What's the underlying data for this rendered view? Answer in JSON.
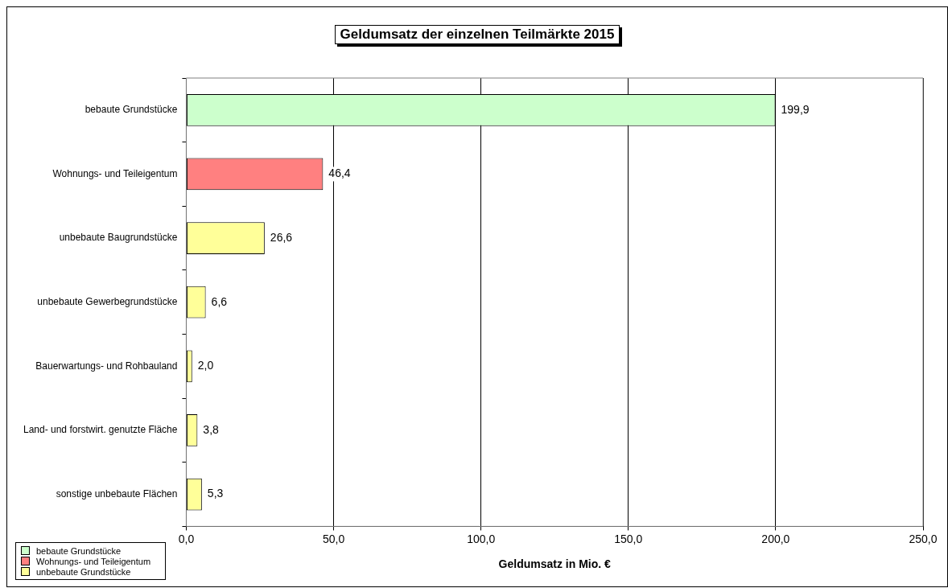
{
  "chart_data": {
    "type": "bar",
    "orientation": "horizontal",
    "title": "Geldumsatz der einzelnen Teilmärkte 2015",
    "xlabel": "Geldumsatz in Mio. €",
    "categories": [
      "bebaute Grundstücke",
      "Wohnungs- und Teileigentum",
      "unbebaute Baugrundstücke",
      "unbebaute Gewerbegrundstücke",
      "Bauerwartungs- und Rohbauland",
      "Land- und forstwirt. genutzte Fläche",
      "sonstige unbebaute Flächen"
    ],
    "series": [
      {
        "name": "bebaute Grundstücke",
        "color": "#ccffcc",
        "values": [
          199.9,
          null,
          null,
          null,
          null,
          null,
          null
        ],
        "value_labels": [
          "199,9",
          null,
          null,
          null,
          null,
          null,
          null
        ]
      },
      {
        "name": "Wohnungs- und Teileigentum",
        "color": "#ff8080",
        "values": [
          null,
          46.4,
          null,
          null,
          null,
          null,
          null
        ],
        "value_labels": [
          null,
          "46,4",
          null,
          null,
          null,
          null,
          null
        ]
      },
      {
        "name": "unbebaute Grundstücke",
        "color": "#ffff99",
        "values": [
          null,
          null,
          26.6,
          6.6,
          2.0,
          3.8,
          5.3
        ],
        "value_labels": [
          null,
          null,
          "26,6",
          "6,6",
          "2,0",
          "3,8",
          "5,3"
        ]
      }
    ],
    "xlim": [
      0,
      250
    ],
    "xticks": [
      {
        "value": 0,
        "label": "0,0"
      },
      {
        "value": 50,
        "label": "50,0"
      },
      {
        "value": 100,
        "label": "100,0"
      },
      {
        "value": 150,
        "label": "150,0"
      },
      {
        "value": 200,
        "label": "200,0"
      },
      {
        "value": 250,
        "label": "250,0"
      }
    ],
    "grid": "x",
    "legend": "bottom left"
  }
}
